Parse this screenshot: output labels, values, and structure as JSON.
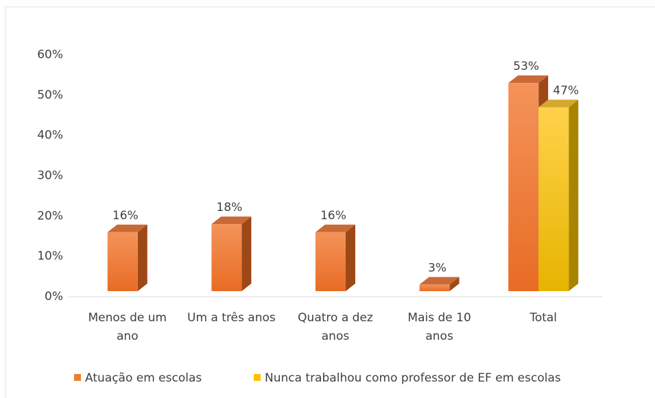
{
  "chart_data": {
    "type": "bar3d",
    "categories": [
      "Menos de um ano",
      "Um a três anos",
      "Quatro a dez anos",
      "Mais de 10 anos",
      "Total"
    ],
    "series": [
      {
        "name": "Atuação em escolas",
        "color": "#ed7d31",
        "values": [
          16,
          18,
          16,
          3,
          53
        ],
        "value_labels": [
          "16%",
          "18%",
          "16%",
          "3%",
          "53%"
        ]
      },
      {
        "name": "Nunca trabalhou como professor de EF em escolas",
        "color": "#ffc000",
        "values": [
          null,
          null,
          null,
          null,
          47
        ],
        "value_labels": [
          null,
          null,
          null,
          null,
          "47%"
        ]
      }
    ],
    "ylim": [
      0,
      60
    ],
    "yticks": [
      {
        "value": 0,
        "label": "0%"
      },
      {
        "value": 10,
        "label": "10%"
      },
      {
        "value": 20,
        "label": "20%"
      },
      {
        "value": 30,
        "label": "30%"
      },
      {
        "value": 40,
        "label": "40%"
      },
      {
        "value": 50,
        "label": "50%"
      },
      {
        "value": 60,
        "label": "60%"
      }
    ],
    "legend": "bottom"
  }
}
